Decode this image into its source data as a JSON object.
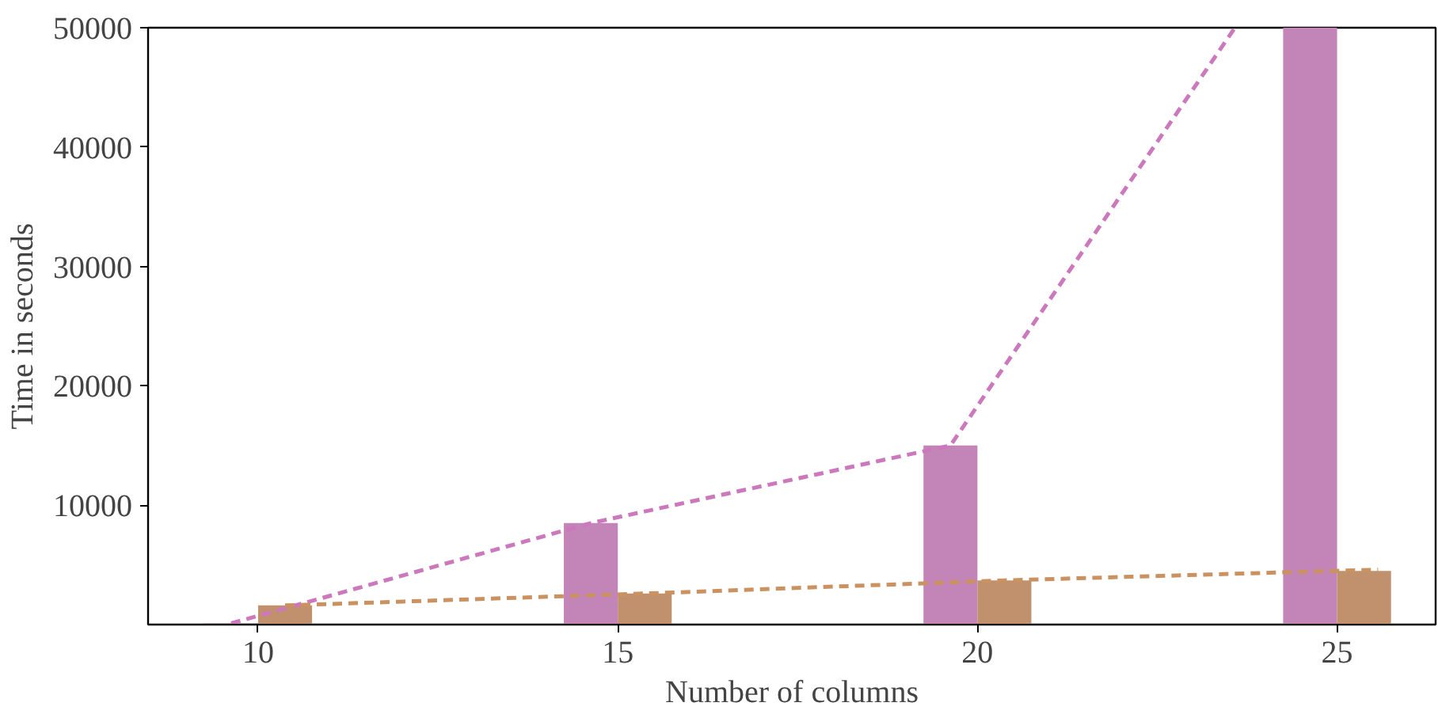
{
  "chart_data": {
    "type": "bar",
    "xlabel": "Number of columns",
    "ylabel": "Time in seconds",
    "xlim": [
      8.47,
      26.37
    ],
    "xticks": [
      10,
      15,
      20,
      25
    ],
    "ylim": [
      0,
      50000
    ],
    "yticks": [
      10000,
      20000,
      30000,
      40000,
      50000
    ],
    "grid": false,
    "series": [
      {
        "color": "#c385b7",
        "x": [
          9.625,
          14.625,
          19.625,
          24.625
        ],
        "values": [
          100,
          8500,
          15000,
          50000
        ]
      },
      {
        "color": "#c0916c",
        "x": [
          10.375,
          15.375,
          20.375,
          25.375
        ],
        "values": [
          1600,
          2600,
          3700,
          4500
        ]
      },
      {
        "type": "line",
        "line_style": "dashed",
        "color": "#cc78bc",
        "x": [
          9.625,
          14.625,
          19.625,
          23.58
        ],
        "values": [
          100,
          8500,
          15000,
          50000
        ]
      },
      {
        "type": "line",
        "line_style": "dashed",
        "color": "#ca9161",
        "x": [
          10.375,
          15.375,
          20.375,
          25.57
        ],
        "values": [
          1600,
          2600,
          3700,
          4600
        ]
      }
    ]
  }
}
